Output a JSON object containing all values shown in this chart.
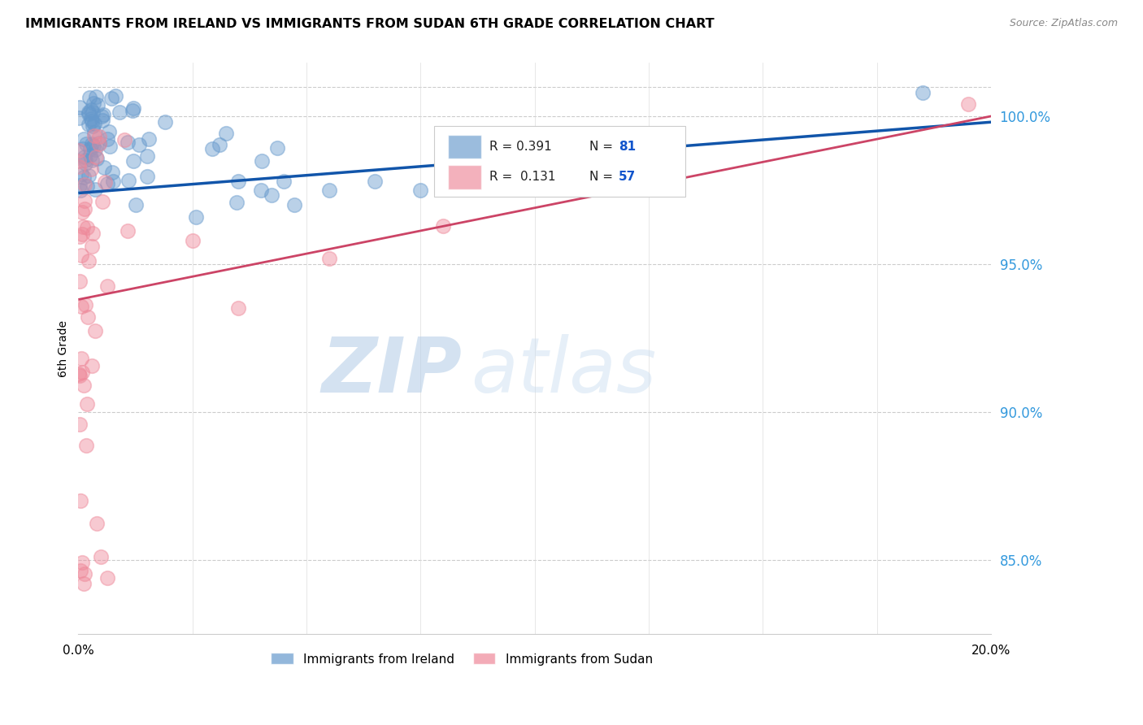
{
  "title": "IMMIGRANTS FROM IRELAND VS IMMIGRANTS FROM SUDAN 6TH GRADE CORRELATION CHART",
  "source": "Source: ZipAtlas.com",
  "ylabel": "6th Grade",
  "xlim": [
    0.0,
    20.0
  ],
  "ylim": [
    82.5,
    101.8
  ],
  "r_ireland": 0.391,
  "n_ireland": 81,
  "r_sudan": 0.131,
  "n_sudan": 57,
  "ireland_color": "#6699cc",
  "sudan_color": "#ee8899",
  "ireland_line_color": "#1155aa",
  "sudan_line_color": "#cc4466",
  "legend_label_ireland": "Immigrants from Ireland",
  "legend_label_sudan": "Immigrants from Sudan",
  "watermark_zip": "ZIP",
  "watermark_atlas": "atlas",
  "yticks": [
    85.0,
    90.0,
    95.0,
    100.0
  ],
  "ireland_line_x": [
    0.0,
    20.0
  ],
  "ireland_line_y": [
    97.4,
    99.8
  ],
  "sudan_line_x": [
    0.0,
    20.0
  ],
  "sudan_line_y": [
    93.8,
    100.0
  ]
}
